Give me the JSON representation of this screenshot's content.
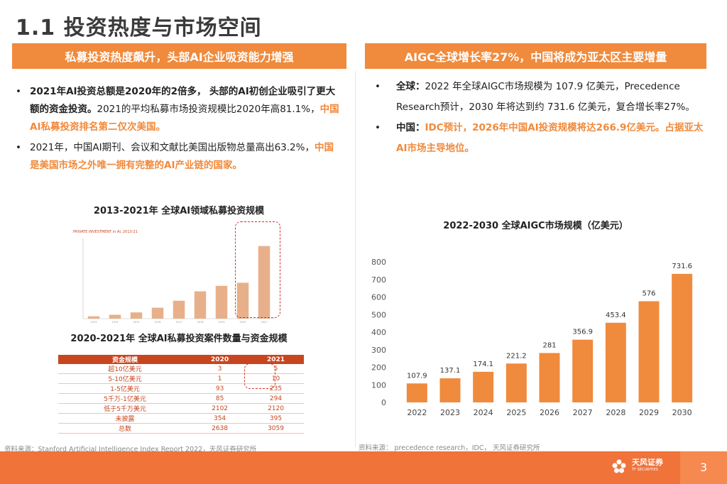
{
  "page": {
    "title": "1.1 投资热度与市场空间",
    "page_number": "3",
    "company_cn": "天风证券",
    "company_en": "TF SECURITIES"
  },
  "left": {
    "banner": "私募投资热度飙升，头部AI企业吸资能力增强",
    "bullet1": {
      "dot": "•",
      "bold_text": "2021年AI投资总额是2020年的2倍多，",
      "bold_text2": "头部的AI初创企业吸引了更大额的资金投资。",
      "normal_text": "2021的平均私募市场投资规模比2020年高81.1%，",
      "orange_text": "中国AI私募投资排名第二仅次美国。"
    },
    "bullet2": {
      "dot": "•",
      "normal_text": "2021年，中国AI期刊、会议和文献比美国出版物总量高出63.2%，",
      "orange_text": "中国是美国市场之外唯一拥有完整的AI产业链的国家。"
    },
    "chart_title": "2013-2021年 全球AI领域私募投资规模",
    "mini_chart_caption": "PRIVATE INVESTMENT in AI, 2013-21",
    "table_title": "2020-2021年 全球AI私募投资案件数量与资金规模",
    "table": {
      "headers": [
        "资金规模",
        "2020",
        "2021"
      ],
      "rows": [
        [
          "超10亿美元",
          "3",
          "5"
        ],
        [
          "5-10亿美元",
          "1",
          "10"
        ],
        [
          "1-5亿美元",
          "93",
          "235"
        ],
        [
          "5千万-1亿美元",
          "85",
          "294"
        ],
        [
          "低于5千万美元",
          "2102",
          "2120"
        ],
        [
          "未披露",
          "354",
          "395"
        ],
        [
          "总数",
          "2638",
          "3059"
        ]
      ]
    },
    "source": "资料来源：Stanford Artificial Intelligence Index Report 2022，天风证券研究所"
  },
  "right": {
    "banner": "AIGC全球增长率27%，中国将成为亚太区主要增量",
    "bullet1": {
      "dot": "•",
      "bold_text": "全球",
      "colon": "：",
      "normal_text": "2022 年全球AIGC市场规模为 107.9 亿美元，Precedence Research预计，2030 年将达到约 731.6 亿美元，复合增长率27%。"
    },
    "bullet2": {
      "dot": "•",
      "bold_text": "中国",
      "colon": "：",
      "orange_text": "IDC预计，2026年中国AI投资规模将达266.9亿美元。占据亚太AI市场主导地位。"
    },
    "chart_title": "2022-2030 全球AIGC市场规模（亿美元）",
    "source": "资料来源：  precedence research，IDC，  天风证券研究所"
  },
  "chart_data": [
    {
      "type": "bar",
      "title": "2022-2030 全球AIGC市场规模（亿美元）",
      "categories": [
        "2022",
        "2023",
        "2024",
        "2025",
        "2026",
        "2027",
        "2028",
        "2029",
        "2030"
      ],
      "values": [
        107.9,
        137.1,
        174.1,
        221.2,
        281,
        356.9,
        453.4,
        576,
        731.6
      ],
      "labels": [
        "107.9",
        "137.1",
        "174.1",
        "221.2",
        "281",
        "356.9",
        "453.4",
        "576",
        "731.6"
      ],
      "ylim": [
        0,
        800
      ],
      "yticks": [
        "0",
        "100",
        "200",
        "300",
        "400",
        "500",
        "600",
        "700",
        "800"
      ],
      "xlabel": "",
      "ylabel": "",
      "color": "#f08a3c"
    },
    {
      "type": "bar",
      "title": "2013-2021年 全球AI领域私募投资规模",
      "categories": [
        "2013",
        "2014",
        "2015",
        "2016",
        "2017",
        "2018",
        "2019",
        "2020",
        "2021"
      ],
      "values": [
        3,
        5,
        8,
        14,
        23,
        35,
        42,
        46,
        93
      ],
      "ylim": [
        0,
        100
      ],
      "color": "#e8b08a"
    }
  ],
  "colors": {
    "accent": "#f08a3c",
    "table_red": "#c8461f",
    "footer": "#f0733a"
  }
}
